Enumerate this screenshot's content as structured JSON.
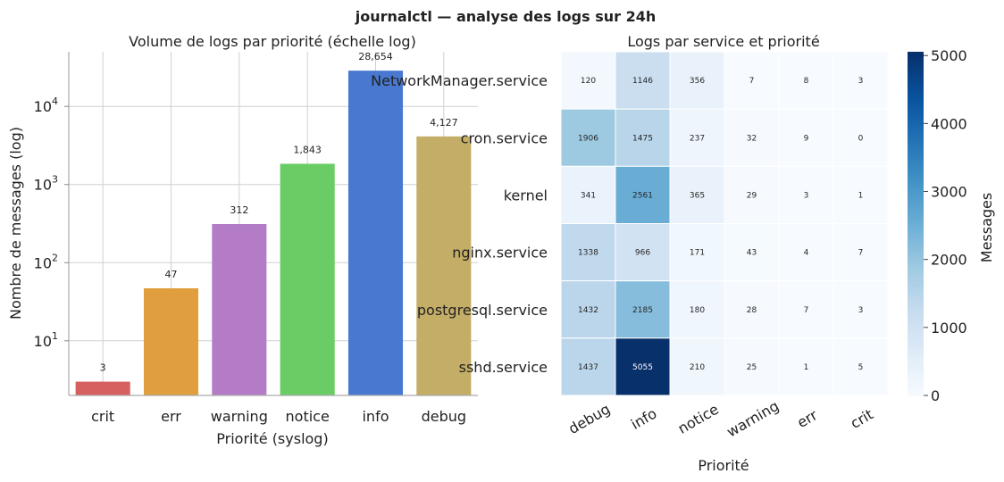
{
  "figure": {
    "title": "journalctl — analyse des logs sur 24h"
  },
  "chart_data": [
    {
      "type": "bar",
      "title": "Volume de logs par priorité (échelle log)",
      "xlabel": "Priorité (syslog)",
      "ylabel": "Nombre de messages (log)",
      "yscale": "log",
      "ylim": [
        2,
        50000
      ],
      "ytick_labels": [
        {
          "base": "10",
          "exp": "1"
        },
        {
          "base": "10",
          "exp": "2"
        },
        {
          "base": "10",
          "exp": "3"
        },
        {
          "base": "10",
          "exp": "4"
        }
      ],
      "categories": [
        "crit",
        "err",
        "warning",
        "notice",
        "info",
        "debug"
      ],
      "values": [
        3,
        47,
        312,
        1843,
        28654,
        4127
      ],
      "value_labels": [
        "3",
        "47",
        "312",
        "1,843",
        "28,654",
        "4,127"
      ],
      "colors": [
        "#d65f5f",
        "#e09e3f",
        "#b47cc7",
        "#6acc64",
        "#4878d0",
        "#c4ad66"
      ],
      "grid": true
    },
    {
      "type": "heatmap",
      "title": "Logs par service et priorité",
      "xlabel": "Priorité",
      "ylabel": "",
      "x": [
        "debug",
        "info",
        "notice",
        "warning",
        "err",
        "crit"
      ],
      "y": [
        "NetworkManager.service",
        "cron.service",
        "kernel",
        "nginx.service",
        "postgresql.service",
        "sshd.service"
      ],
      "values": [
        [
          120,
          1146,
          356,
          7,
          8,
          3
        ],
        [
          1906,
          1475,
          237,
          32,
          9,
          0
        ],
        [
          341,
          2561,
          365,
          29,
          3,
          1
        ],
        [
          1338,
          966,
          171,
          43,
          4,
          7
        ],
        [
          1432,
          2185,
          180,
          28,
          7,
          3
        ],
        [
          1437,
          5055,
          210,
          25,
          1,
          5
        ]
      ],
      "colorbar": {
        "label": "Messages",
        "min": 0,
        "max": 5055,
        "ticks": [
          0,
          1000,
          2000,
          3000,
          4000,
          5000
        ],
        "colormap": "Blues"
      }
    }
  ]
}
